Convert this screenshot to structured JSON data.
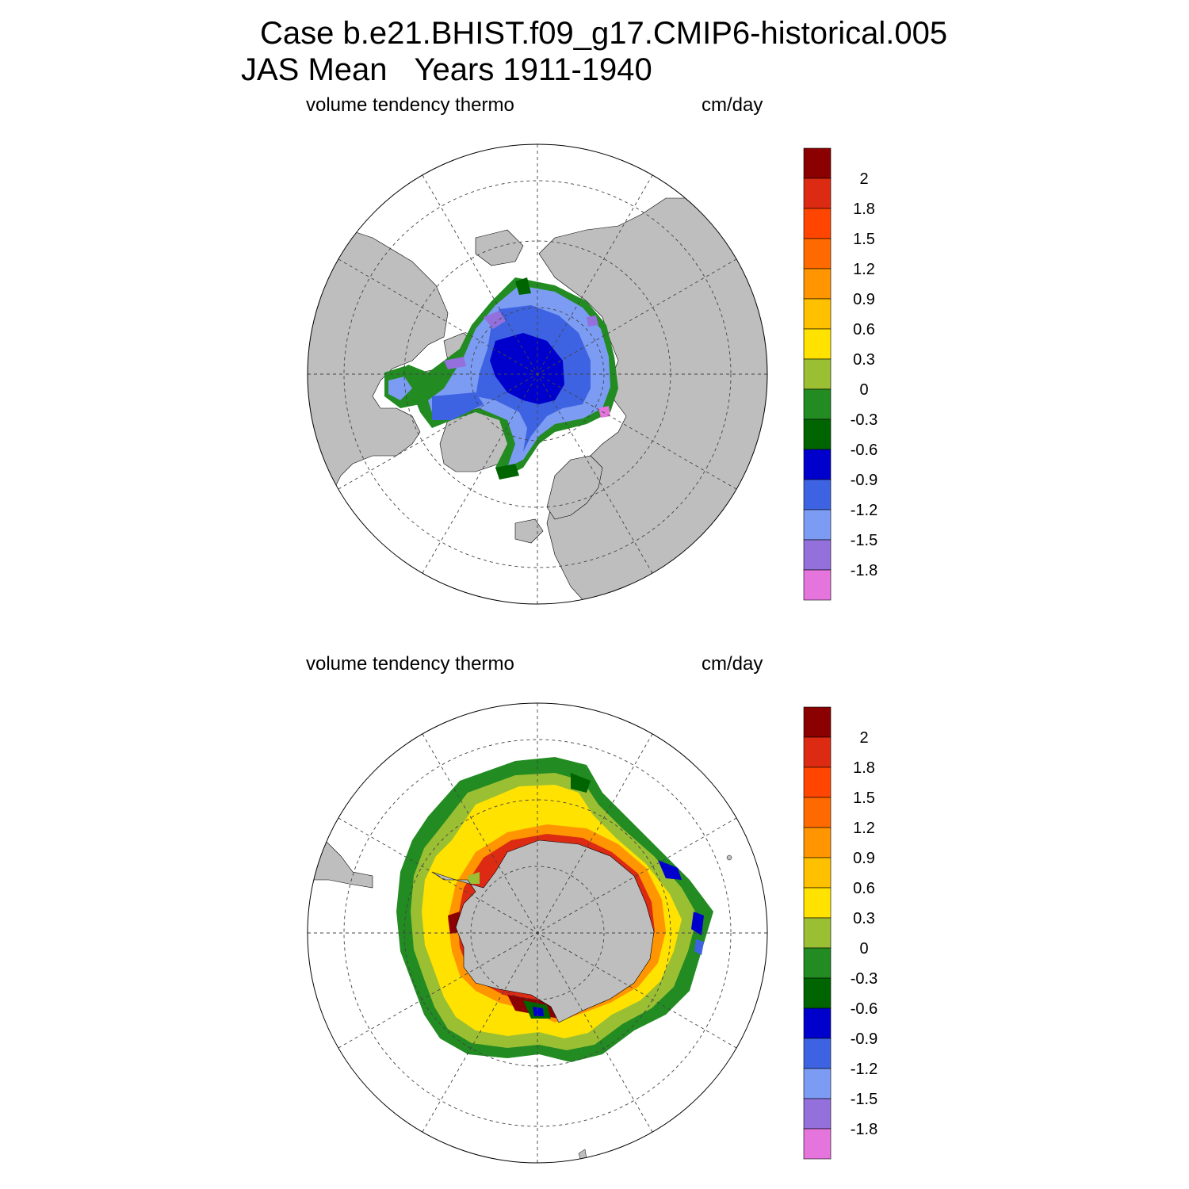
{
  "title": {
    "case": "Case b.e21.BHIST.f09_g17.CMIP6-historical.005",
    "season": "JAS Mean",
    "years": "Years 1911-1940"
  },
  "panels": [
    {
      "id": "north",
      "hemisphere": "Northern Hemisphere polar stereographic",
      "variable": "volume tendency thermo",
      "units": "cm/day"
    },
    {
      "id": "south",
      "hemisphere": "Southern Hemisphere polar stereographic",
      "variable": "volume tendency thermo",
      "units": "cm/day"
    }
  ],
  "colorbar": {
    "labels": [
      "2",
      "1.8",
      "1.5",
      "1.2",
      "0.9",
      "0.6",
      "0.3",
      "0",
      "-0.3",
      "-0.6",
      "-0.9",
      "-1.2",
      "-1.5",
      "-1.8"
    ],
    "colors": [
      "#8b0000",
      "#dd2a12",
      "#ff4500",
      "#ff6a00",
      "#ff9500",
      "#ffc000",
      "#ffe200",
      "#9bbf33",
      "#228b22",
      "#006400",
      "#0000cc",
      "#3e63e2",
      "#7b9cf2",
      "#9370db",
      "#e574dc"
    ]
  },
  "map_colors": {
    "land": "#bebebe",
    "ocean": "#ffffff"
  }
}
